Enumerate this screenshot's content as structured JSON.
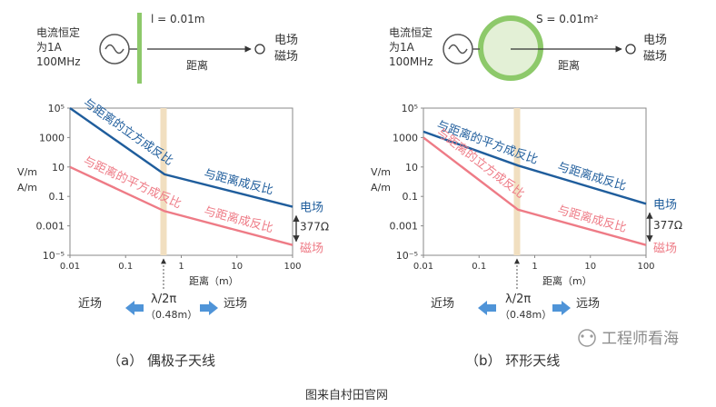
{
  "colors": {
    "blue": "#1f5d9c",
    "pink": "#ee7b86",
    "green": "#8dc96a",
    "band": "#f1dfc0",
    "arrow_blue": "#4f94d8",
    "text": "#333333"
  },
  "panel_a": {
    "source_label_lines": [
      "电流恒定",
      "为1A",
      "100MHz"
    ],
    "element_label": "l = 0.01m",
    "distance_label": "距离",
    "output_label_lines": [
      "电场",
      "磁场"
    ],
    "caption": "（a） 偶极子天线",
    "chart_data": {
      "type": "line",
      "title": "偶极子天线",
      "ylabel_lines": [
        "V/m",
        "A/m"
      ],
      "xlabel": "距离（m）",
      "x_ticks": [
        "0.01",
        "0.1",
        "1",
        "10",
        "100"
      ],
      "y_ticks": [
        "10⁻⁵",
        "0.001",
        "0.1",
        "10",
        "1000",
        "10⁵"
      ],
      "xlim": [
        0.01,
        100
      ],
      "ylim_exp": [
        -5,
        5
      ],
      "band_x": 0.48,
      "series": [
        {
          "name": "电场",
          "color": "blue",
          "x": [
            0.01,
            0.5,
            100
          ],
          "y_exp": [
            5,
            0.5,
            -1.7
          ]
        },
        {
          "name": "磁场",
          "color": "pink",
          "x": [
            0.01,
            0.5,
            100
          ],
          "y_exp": [
            1,
            -2,
            -4.3
          ]
        }
      ],
      "annotations": {
        "blue_near": "与距离的立方成反比",
        "blue_far": "与距离成反比",
        "pink_near": "与距离的平方成反比",
        "pink_far": "与距离成反比",
        "e_label": "电场",
        "h_label": "磁场",
        "impedance": "377Ω"
      }
    },
    "near_field": "近场",
    "far_field": "远场",
    "lambda": "λ/2π",
    "lambda_value": "（0.48m）"
  },
  "panel_b": {
    "source_label_lines": [
      "电流恒定",
      "为1A",
      "100MHz"
    ],
    "element_label": "S = 0.01m²",
    "distance_label": "距离",
    "output_label_lines": [
      "电场",
      "磁场"
    ],
    "caption": "（b） 环形天线",
    "chart_data": {
      "type": "line",
      "title": "环形天线",
      "ylabel_lines": [
        "V/m",
        "A/m"
      ],
      "xlabel": "距离（m）",
      "x_ticks": [
        "0.01",
        "0.1",
        "1",
        "10",
        "100"
      ],
      "y_ticks": [
        "10⁻⁵",
        "0.001",
        "0.1",
        "10",
        "1000",
        "10⁵"
      ],
      "xlim": [
        0.01,
        100
      ],
      "ylim_exp": [
        -5,
        5
      ],
      "band_x": 0.48,
      "series": [
        {
          "name": "电场",
          "color": "blue",
          "x": [
            0.01,
            0.5,
            100
          ],
          "y_exp": [
            3.4,
            1.1,
            -1.5
          ]
        },
        {
          "name": "磁场",
          "color": "pink",
          "x": [
            0.01,
            0.5,
            100
          ],
          "y_exp": [
            3,
            -1.9,
            -4.3
          ]
        }
      ],
      "annotations": {
        "blue_near": "与距离的平方成反比",
        "blue_far": "与距离成反比",
        "pink_near": "与距离的立方成反比",
        "pink_far": "与距离成反比",
        "e_label": "电场",
        "h_label": "磁场",
        "impedance": "377Ω"
      }
    },
    "near_field": "近场",
    "far_field": "远场",
    "lambda": "λ/2π",
    "lambda_value": "（0.48m）"
  },
  "watermark": "工程师看海",
  "footer": "图来自村田官网"
}
